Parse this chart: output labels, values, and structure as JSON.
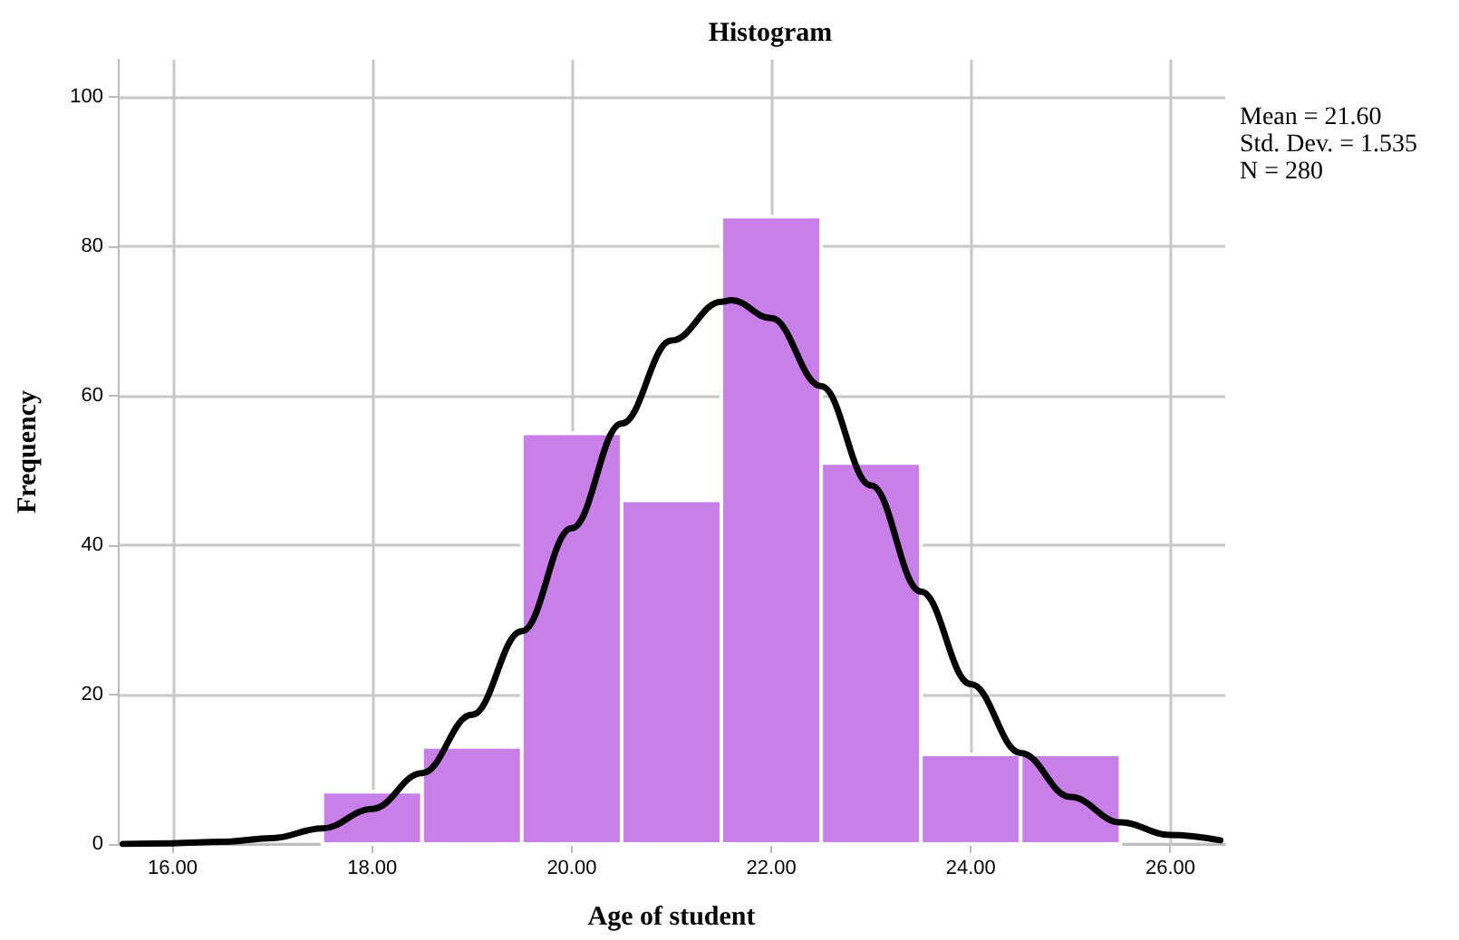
{
  "chart_data": {
    "type": "histogram",
    "title": "Histogram",
    "xlabel": "Age of student",
    "ylabel": "Frequency",
    "annotations": [
      "Mean = 21.60",
      "Std. Dev. = 1.535",
      "N = 280"
    ],
    "bins": [
      17.5,
      18.5,
      19.5,
      20.5,
      21.5,
      22.5,
      23.5,
      24.5,
      25.5
    ],
    "series": [
      {
        "color": "#c880e8",
        "values": [
          7,
          13,
          55,
          46,
          84,
          51,
          12,
          12
        ]
      },
      {
        "type": "line",
        "color": "#000000",
        "x": [
          15.5,
          16,
          16.5,
          17,
          17.5,
          18,
          18.5,
          19,
          19.5,
          20,
          20.5,
          21,
          21.5,
          21.6,
          22,
          22.5,
          23,
          23.5,
          24,
          24.5,
          25,
          25.5,
          26,
          26.5
        ],
        "values": [
          0.0,
          0.1,
          0.3,
          0.8,
          2.1,
          4.7,
          9.5,
          17.3,
          28.5,
          42.3,
          56.3,
          67.4,
          72.6,
          72.8,
          70.4,
          61.3,
          48.0,
          33.8,
          21.4,
          12.2,
          6.3,
          2.9,
          1.2,
          0.5
        ]
      }
    ],
    "xlim": [
      15.45,
      26.55
    ],
    "xticks": [
      {
        "value": 16,
        "label": "16.00"
      },
      {
        "value": 18,
        "label": "18.00"
      },
      {
        "value": 20,
        "label": "20.00"
      },
      {
        "value": 22,
        "label": "22.00"
      },
      {
        "value": 24,
        "label": "24.00"
      },
      {
        "value": 26,
        "label": "26.00"
      }
    ],
    "ylim": [
      0,
      105
    ],
    "yticks": [
      0,
      20,
      40,
      60,
      80,
      100
    ],
    "grid": true
  }
}
